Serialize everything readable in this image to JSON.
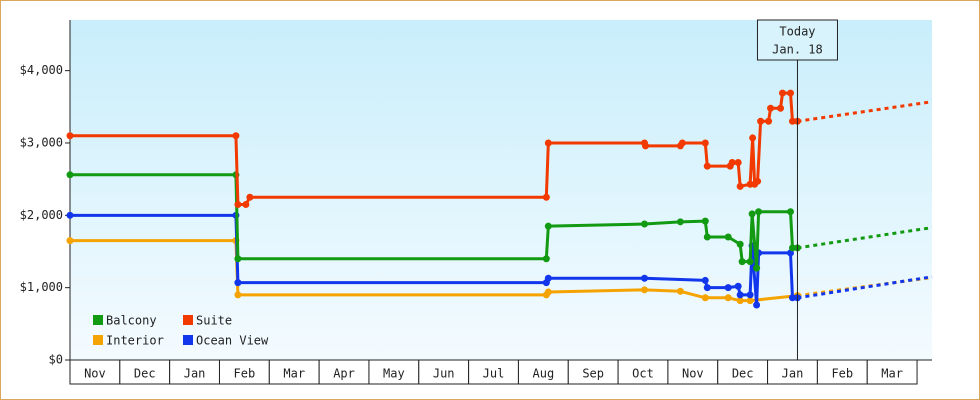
{
  "chart_data": {
    "type": "line",
    "xlim": [
      0,
      17.3
    ],
    "ylim": [
      0,
      4700
    ],
    "yticks": [
      {
        "value": 0,
        "label": "$0"
      },
      {
        "value": 1000,
        "label": "$1,000"
      },
      {
        "value": 2000,
        "label": "$2,000"
      },
      {
        "value": 3000,
        "label": "$3,000"
      },
      {
        "value": 4000,
        "label": "$4,000"
      }
    ],
    "xticks": [
      {
        "value": 0.5,
        "label": "Nov"
      },
      {
        "value": 1.5,
        "label": "Dec"
      },
      {
        "value": 2.5,
        "label": "Jan"
      },
      {
        "value": 3.5,
        "label": "Feb"
      },
      {
        "value": 4.5,
        "label": "Mar"
      },
      {
        "value": 5.5,
        "label": "Apr"
      },
      {
        "value": 6.5,
        "label": "May"
      },
      {
        "value": 7.5,
        "label": "Jun"
      },
      {
        "value": 8.5,
        "label": "Jul"
      },
      {
        "value": 9.5,
        "label": "Aug"
      },
      {
        "value": 10.5,
        "label": "Sep"
      },
      {
        "value": 11.5,
        "label": "Oct"
      },
      {
        "value": 12.5,
        "label": "Nov"
      },
      {
        "value": 13.5,
        "label": "Dec"
      },
      {
        "value": 14.5,
        "label": "Jan"
      },
      {
        "value": 15.5,
        "label": "Feb"
      },
      {
        "value": 16.5,
        "label": "Mar"
      }
    ],
    "today": {
      "x": 14.6,
      "label": [
        "Today",
        "Jan. 18"
      ]
    },
    "series": [
      {
        "name": "Balcony",
        "color": "#139a13",
        "x": [
          0,
          3.33,
          3.37,
          9.56,
          9.6,
          11.53,
          12.25,
          12.75,
          12.79,
          13.21,
          13.45,
          13.49,
          13.65,
          13.69,
          13.78,
          13.82,
          14.46,
          14.5,
          14.6
        ],
        "values": [
          2560,
          2560,
          1400,
          1400,
          1850,
          1880,
          1910,
          1920,
          1700,
          1700,
          1600,
          1360,
          1360,
          2020,
          1270,
          2050,
          2050,
          1550,
          1550
        ],
        "projection_x": [
          14.6,
          17.3
        ],
        "projection_values": [
          1550,
          1830
        ]
      },
      {
        "name": "Suite",
        "color": "#f23a00",
        "x": [
          0,
          3.33,
          3.37,
          3.53,
          3.61,
          9.56,
          9.6,
          11.53,
          11.55,
          12.25,
          12.29,
          12.75,
          12.79,
          13.25,
          13.29,
          13.41,
          13.45,
          13.65,
          13.7,
          13.74,
          13.8,
          13.86,
          14.02,
          14.06,
          14.26,
          14.3,
          14.46,
          14.5,
          14.6
        ],
        "values": [
          3100,
          3100,
          2150,
          2150,
          2250,
          2250,
          3000,
          3000,
          2960,
          2960,
          3000,
          3000,
          2680,
          2680,
          2730,
          2730,
          2400,
          2430,
          3070,
          2430,
          2470,
          3300,
          3300,
          3480,
          3480,
          3690,
          3690,
          3300,
          3300
        ],
        "projection_x": [
          14.6,
          17.3
        ],
        "projection_values": [
          3300,
          3570
        ]
      },
      {
        "name": "Interior",
        "color": "#f5a300",
        "x": [
          0,
          3.33,
          3.37,
          9.56,
          9.6,
          11.53,
          12.25,
          12.75,
          13.21,
          13.45,
          13.65,
          14.6
        ],
        "values": [
          1650,
          1650,
          900,
          900,
          940,
          970,
          950,
          860,
          860,
          820,
          820,
          890
        ],
        "projection_x": [
          14.6,
          17.3
        ],
        "projection_values": [
          890,
          1140
        ]
      },
      {
        "name": "Ocean View",
        "color": "#1236ec",
        "x": [
          0,
          3.33,
          3.37,
          9.56,
          9.6,
          11.53,
          12.75,
          12.79,
          13.21,
          13.41,
          13.45,
          13.65,
          13.69,
          13.78,
          13.82,
          14.46,
          14.5,
          14.6
        ],
        "values": [
          2000,
          2000,
          1070,
          1070,
          1130,
          1130,
          1100,
          1000,
          1000,
          1020,
          900,
          900,
          1580,
          760,
          1480,
          1480,
          860,
          860
        ],
        "projection_x": [
          14.6,
          17.3
        ],
        "projection_values": [
          860,
          1150
        ]
      }
    ]
  }
}
